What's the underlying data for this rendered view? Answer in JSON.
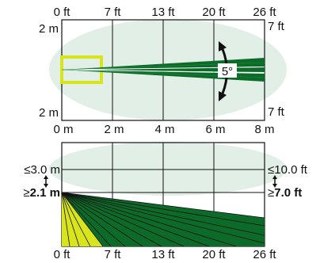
{
  "colors": {
    "coverage": "#e1efe6",
    "beam": "#0d6b2a",
    "creep_zone": "#d8e51c",
    "creep_outline": "#c9d200",
    "arrow": "#111111"
  },
  "top_view": {
    "x_ft_labels": [
      "0 ft",
      "7 ft",
      "13 ft",
      "20 ft",
      "26 ft"
    ],
    "x_m_labels": [
      "0 m",
      "2 m",
      "4 m",
      "6 m",
      "8 m"
    ],
    "left_top": "2 m",
    "left_bottom": "2 m",
    "right_top": "7 ft",
    "right_bottom": "7 ft",
    "angle": "5°"
  },
  "side_view": {
    "left_upper": "≤3.0 m",
    "left_lower_prefix": "≥",
    "left_lower_value": "2.1 m",
    "right_upper": "≤10.0 ft",
    "right_lower_prefix": "≥",
    "right_lower_value": "7.0 ft",
    "x_ft_labels": [
      "0 ft",
      "7 ft",
      "13 ft",
      "20 ft",
      "26 ft"
    ]
  },
  "icons": {
    "rotate": "curved-double-arrow",
    "height_adjust": "vertical-double-arrow"
  }
}
